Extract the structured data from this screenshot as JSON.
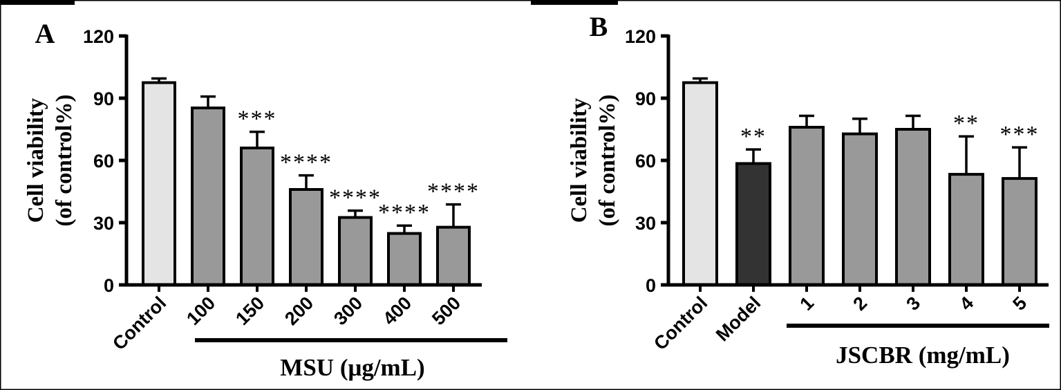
{
  "chart_data": [
    {
      "panel_label": "A",
      "type": "bar",
      "categories": [
        "Control",
        "100",
        "150",
        "200",
        "300",
        "400",
        "500"
      ],
      "values": [
        97.5,
        85.3,
        66.0,
        46.0,
        32.5,
        24.8,
        27.8
      ],
      "errors": [
        2.0,
        5.5,
        7.8,
        6.8,
        3.3,
        3.8,
        11.0
      ],
      "significance": [
        "",
        "",
        "***",
        "****",
        "****",
        "****",
        "****"
      ],
      "fill_colors": [
        "#e4e4e4",
        "#999999",
        "#999999",
        "#999999",
        "#999999",
        "#999999",
        "#999999"
      ],
      "ylabel_line1": "Cell viability",
      "ylabel_line2": "(of control%)",
      "yticks": [
        "0",
        "30",
        "60",
        "90",
        "120"
      ],
      "ylim": [
        0,
        120
      ],
      "group_label": "MSU (μg/mL)",
      "group_start_index": 1
    },
    {
      "panel_label": "B",
      "type": "bar",
      "categories": [
        "Control",
        "Model",
        "1",
        "2",
        "3",
        "4",
        "5"
      ],
      "values": [
        97.5,
        58.5,
        76.0,
        72.8,
        75.0,
        53.3,
        51.3
      ],
      "errors": [
        2.0,
        6.8,
        5.5,
        7.3,
        6.5,
        18.3,
        15.0
      ],
      "significance": [
        "",
        "**",
        "",
        "",
        "",
        "**",
        "***"
      ],
      "fill_colors": [
        "#e4e4e4",
        "#333333",
        "#999999",
        "#999999",
        "#999999",
        "#999999",
        "#999999"
      ],
      "ylabel_line1": "Cell viability",
      "ylabel_line2": "(of control%)",
      "yticks": [
        "0",
        "30",
        "60",
        "90",
        "120"
      ],
      "ylim": [
        0,
        120
      ],
      "group_label": "JSCBR (mg/mL)",
      "group_start_index": 2
    }
  ]
}
